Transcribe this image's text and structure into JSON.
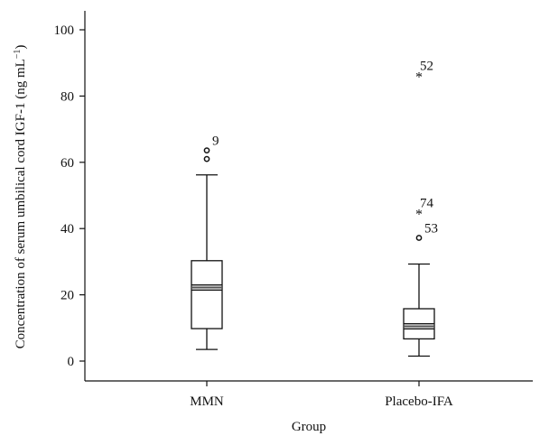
{
  "chart_data": {
    "type": "box",
    "title": "",
    "xlabel": "Group",
    "ylabel": "Concentration of serum umbilical cord IGF-1 (ng mL",
    "ylabel_sup": "−1",
    "ylabel_close": ")",
    "ylim": [
      -7,
      105
    ],
    "yticks": [
      {
        "value": 0,
        "label": "0"
      },
      {
        "value": 20,
        "label": "20"
      },
      {
        "value": 40,
        "label": "40"
      },
      {
        "value": 60,
        "label": "60"
      },
      {
        "value": 80,
        "label": "80"
      },
      {
        "value": 100,
        "label": "100"
      }
    ],
    "grid": false,
    "groups": [
      {
        "label": "MMN",
        "whisker_low": 3.5,
        "q1": 9.8,
        "median": 22.2,
        "q3": 30.3,
        "whisker_high": 56.2,
        "outliers": [
          {
            "value": 61.0,
            "marker": "circle",
            "label": ""
          },
          {
            "value": 63.6,
            "marker": "circle",
            "label": "9"
          }
        ]
      },
      {
        "label": "Placebo-IFA",
        "whisker_low": 1.5,
        "q1": 6.7,
        "median": 10.5,
        "q3": 15.8,
        "whisker_high": 29.3,
        "outliers": [
          {
            "value": 37.2,
            "marker": "circle",
            "label": "53"
          },
          {
            "value": 45.4,
            "marker": "star",
            "label": "74"
          },
          {
            "value": 86.8,
            "marker": "star",
            "label": "52"
          }
        ]
      }
    ]
  },
  "colors": {
    "axis": "#111111",
    "box_fill": "#ffffff",
    "box_stroke": "#111111",
    "median_fill": "#a8a8a8"
  }
}
